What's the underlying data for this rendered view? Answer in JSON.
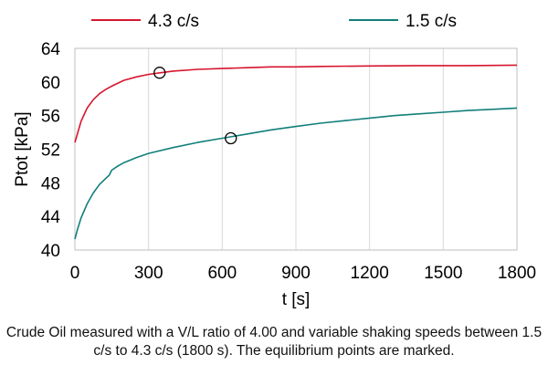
{
  "chart_data": {
    "type": "line",
    "xlabel": "t [s]",
    "ylabel": "Ptot [kPa]",
    "xlim": [
      0,
      1800
    ],
    "ylim": [
      40,
      64
    ],
    "xticks": [
      "0",
      "300",
      "600",
      "900",
      "1200",
      "1500",
      "1800"
    ],
    "yticks": [
      "40",
      "44",
      "48",
      "52",
      "56",
      "60",
      "64"
    ],
    "grid": "vertical",
    "legend_position": "top",
    "series": [
      {
        "name": "4.3 c/s",
        "color": "#d7152e",
        "x": [
          0,
          25,
          50,
          75,
          100,
          125,
          150,
          200,
          250,
          300,
          350,
          400,
          500,
          600,
          700,
          800,
          900,
          1000,
          1200,
          1400,
          1600,
          1800
        ],
        "y": [
          52.8,
          55.3,
          56.9,
          57.9,
          58.6,
          59.1,
          59.5,
          60.2,
          60.6,
          60.9,
          61.1,
          61.3,
          61.5,
          61.6,
          61.7,
          61.8,
          61.8,
          61.85,
          61.9,
          61.95,
          61.95,
          62.0
        ]
      },
      {
        "name": "1.5 c/s",
        "color": "#127f7a",
        "x": [
          0,
          10,
          25,
          50,
          75,
          100,
          125,
          140,
          150,
          175,
          200,
          250,
          300,
          400,
          500,
          600,
          700,
          800,
          900,
          1000,
          1100,
          1200,
          1300,
          1400,
          1500,
          1600,
          1700,
          1800
        ],
        "y": [
          41.3,
          42.4,
          43.8,
          45.5,
          46.8,
          47.8,
          48.5,
          48.9,
          49.5,
          50.0,
          50.4,
          51.0,
          51.5,
          52.2,
          52.8,
          53.3,
          53.8,
          54.3,
          54.7,
          55.1,
          55.4,
          55.7,
          56.0,
          56.2,
          56.4,
          56.6,
          56.75,
          56.9
        ]
      }
    ],
    "markers": [
      {
        "series": "4.3 c/s",
        "x": 345,
        "y": 61.1
      },
      {
        "series": "1.5 c/s",
        "x": 635,
        "y": 53.3
      }
    ]
  },
  "caption": "Crude Oil measured with a V/L ratio of 4.00 and variable shaking speeds between 1.5 c/s to 4.3 c/s (1800 s). The equilibrium points are marked."
}
